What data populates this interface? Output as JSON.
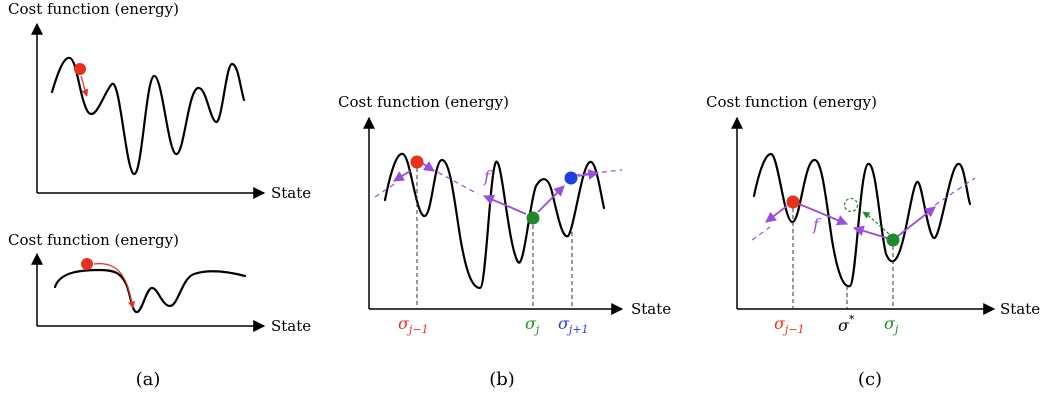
{
  "labels": {
    "cost_function": "Cost function (energy)",
    "state": "State",
    "f": "f"
  },
  "panels": {
    "a": "(a)",
    "b": "(b)",
    "c": "(c)"
  },
  "sigma": {
    "symbol": "σ",
    "j_minus_1": "j−1",
    "j": "j",
    "j_plus_1": "j+1",
    "star": "*"
  },
  "colors": {
    "red": "#e8301c",
    "green": "#1e8a2a",
    "blue": "#1f3ee0",
    "purple": "#9b4ddb"
  }
}
